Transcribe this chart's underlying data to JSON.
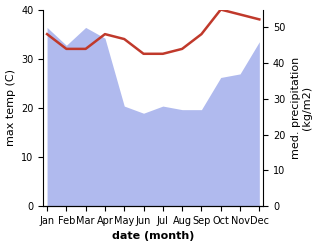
{
  "months": [
    "Jan",
    "Feb",
    "Mar",
    "Apr",
    "May",
    "Jun",
    "Jul",
    "Aug",
    "Sep",
    "Oct",
    "Nov",
    "Dec"
  ],
  "month_indices": [
    0,
    1,
    2,
    3,
    4,
    5,
    6,
    7,
    8,
    9,
    10,
    11
  ],
  "max_temp": [
    35.0,
    32.0,
    32.0,
    35.0,
    34.0,
    31.0,
    31.0,
    32.0,
    35.0,
    40.0,
    39.0,
    38.0
  ],
  "precipitation": [
    50.0,
    45.0,
    50.0,
    47.0,
    28.0,
    26.0,
    28.0,
    27.0,
    27.0,
    36.0,
    37.0,
    46.0
  ],
  "temp_color": "#c0392b",
  "precip_fill_color": "#b0baee",
  "ylim_temp": [
    0,
    40
  ],
  "ylim_precip": [
    0,
    55
  ],
  "xlabel": "date (month)",
  "ylabel_left": "max temp (C)",
  "ylabel_right": "med. precipitation\n(kg/m2)",
  "bg_color": "#ffffff",
  "label_fontsize": 8,
  "tick_fontsize": 7
}
